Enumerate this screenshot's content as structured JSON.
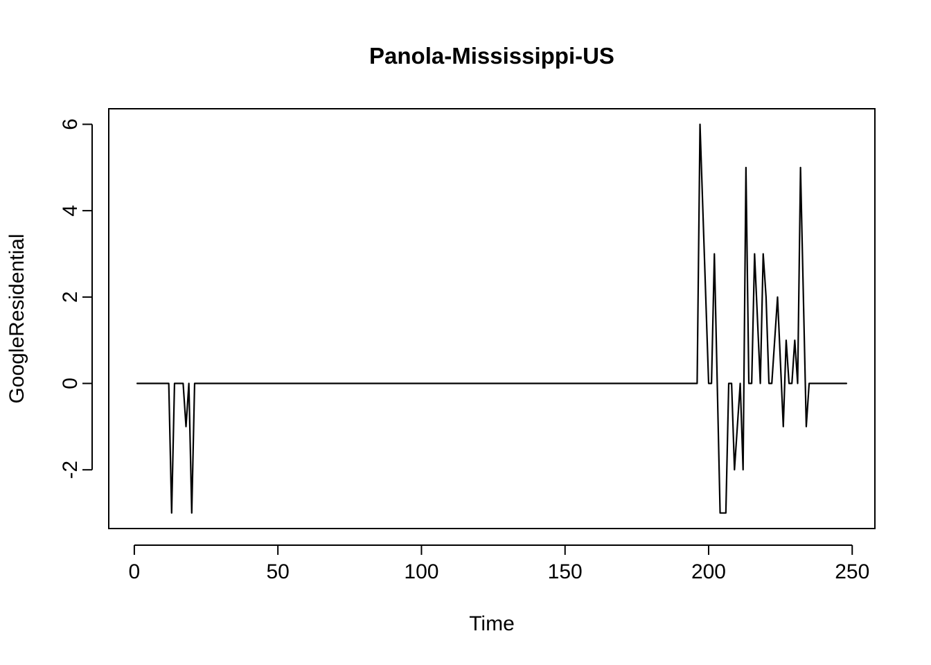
{
  "chart_data": {
    "type": "line",
    "title": "Panola-Mississippi-US",
    "xlabel": "Time",
    "ylabel": "GoogleResidential",
    "xlim": [
      -8.9,
      257.9
    ],
    "ylim": [
      -3.36,
      6.36
    ],
    "x_ticks": [
      0,
      50,
      100,
      150,
      200,
      250
    ],
    "y_ticks": [
      -2,
      0,
      2,
      4,
      6
    ],
    "grid": false,
    "legend": "none",
    "line_color": "#000000",
    "series": [
      {
        "x": [
          1,
          12,
          13,
          14,
          17,
          18,
          19,
          20,
          21,
          196,
          197,
          199,
          200,
          201,
          202,
          204,
          206,
          207,
          208,
          209,
          211,
          212,
          213,
          214,
          215,
          216,
          218,
          219,
          220,
          221,
          222,
          224,
          226,
          227,
          228,
          229,
          230,
          231,
          232,
          234,
          235,
          248
        ],
        "y": [
          0,
          0,
          -3,
          0,
          0,
          -1,
          0,
          -3,
          0,
          0,
          6,
          2,
          0,
          0,
          3,
          -3,
          -3,
          0,
          0,
          -2,
          0,
          -2,
          5,
          0,
          0,
          3,
          0,
          3,
          2,
          0,
          0,
          2,
          -1,
          1,
          0,
          0,
          1,
          0,
          5,
          -1,
          0,
          0
        ]
      }
    ]
  }
}
